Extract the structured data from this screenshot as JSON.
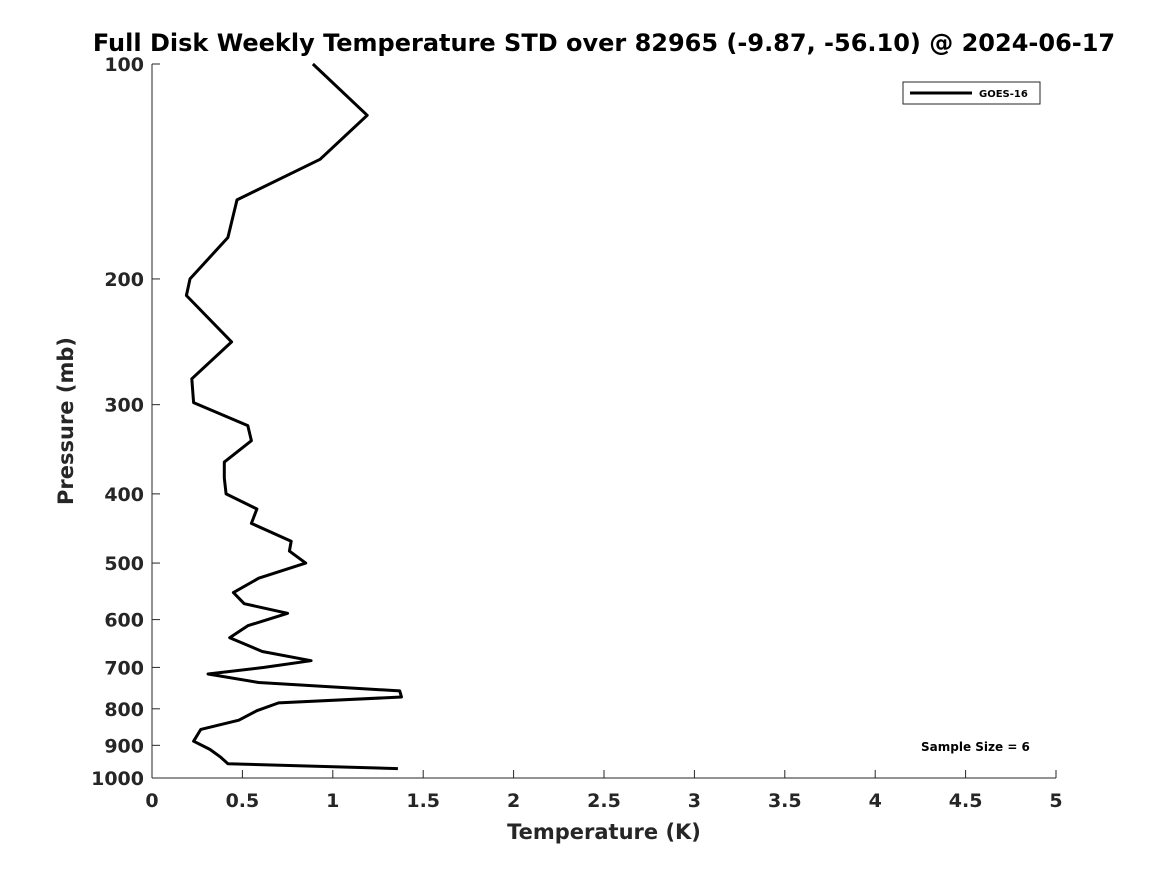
{
  "chart_data": {
    "type": "line",
    "title": "Full Disk Weekly Temperature STD over 82965 (-9.87, -56.10) @ 2024-06-17",
    "xlabel": "Temperature (K)",
    "ylabel": "Pressure (mb)",
    "xlim": [
      0,
      5
    ],
    "ylim": [
      100,
      1000
    ],
    "y_scale": "log",
    "y_reversed": true,
    "x_ticks": [
      "0",
      "0.5",
      "1",
      "1.5",
      "2",
      "2.5",
      "3",
      "3.5",
      "4",
      "4.5",
      "5"
    ],
    "y_ticks": [
      "100",
      "200",
      "300",
      "400",
      "500",
      "600",
      "700",
      "800",
      "900",
      "1000"
    ],
    "grid": false,
    "legend": {
      "placement": "top-right",
      "entries": [
        "GOES-16"
      ]
    },
    "annotations": [
      "Sample Size = 6"
    ],
    "series": [
      {
        "name": "GOES-16",
        "color": "#000000",
        "x": [
          0.89,
          1.19,
          0.93,
          0.47,
          0.42,
          0.21,
          0.19,
          0.44,
          0.22,
          0.23,
          0.53,
          0.55,
          0.4,
          0.4,
          0.41,
          0.58,
          0.55,
          0.77,
          0.76,
          0.85,
          0.59,
          0.45,
          0.51,
          0.75,
          0.53,
          0.43,
          0.61,
          0.88,
          0.62,
          0.31,
          0.59,
          1.37,
          1.38,
          0.7,
          0.58,
          0.48,
          0.27,
          0.23,
          0.32,
          0.38,
          0.42,
          1.36
        ],
        "y": [
          100,
          118,
          136,
          155,
          175,
          200,
          211,
          245,
          276,
          298,
          321,
          337,
          361,
          380,
          400,
          420,
          440,
          466,
          481,
          500,
          525,
          550,
          570,
          588,
          612,
          636,
          665,
          685,
          700,
          715,
          735,
          755,
          770,
          785,
          805,
          830,
          855,
          888,
          912,
          935,
          955,
          970
        ]
      }
    ]
  }
}
